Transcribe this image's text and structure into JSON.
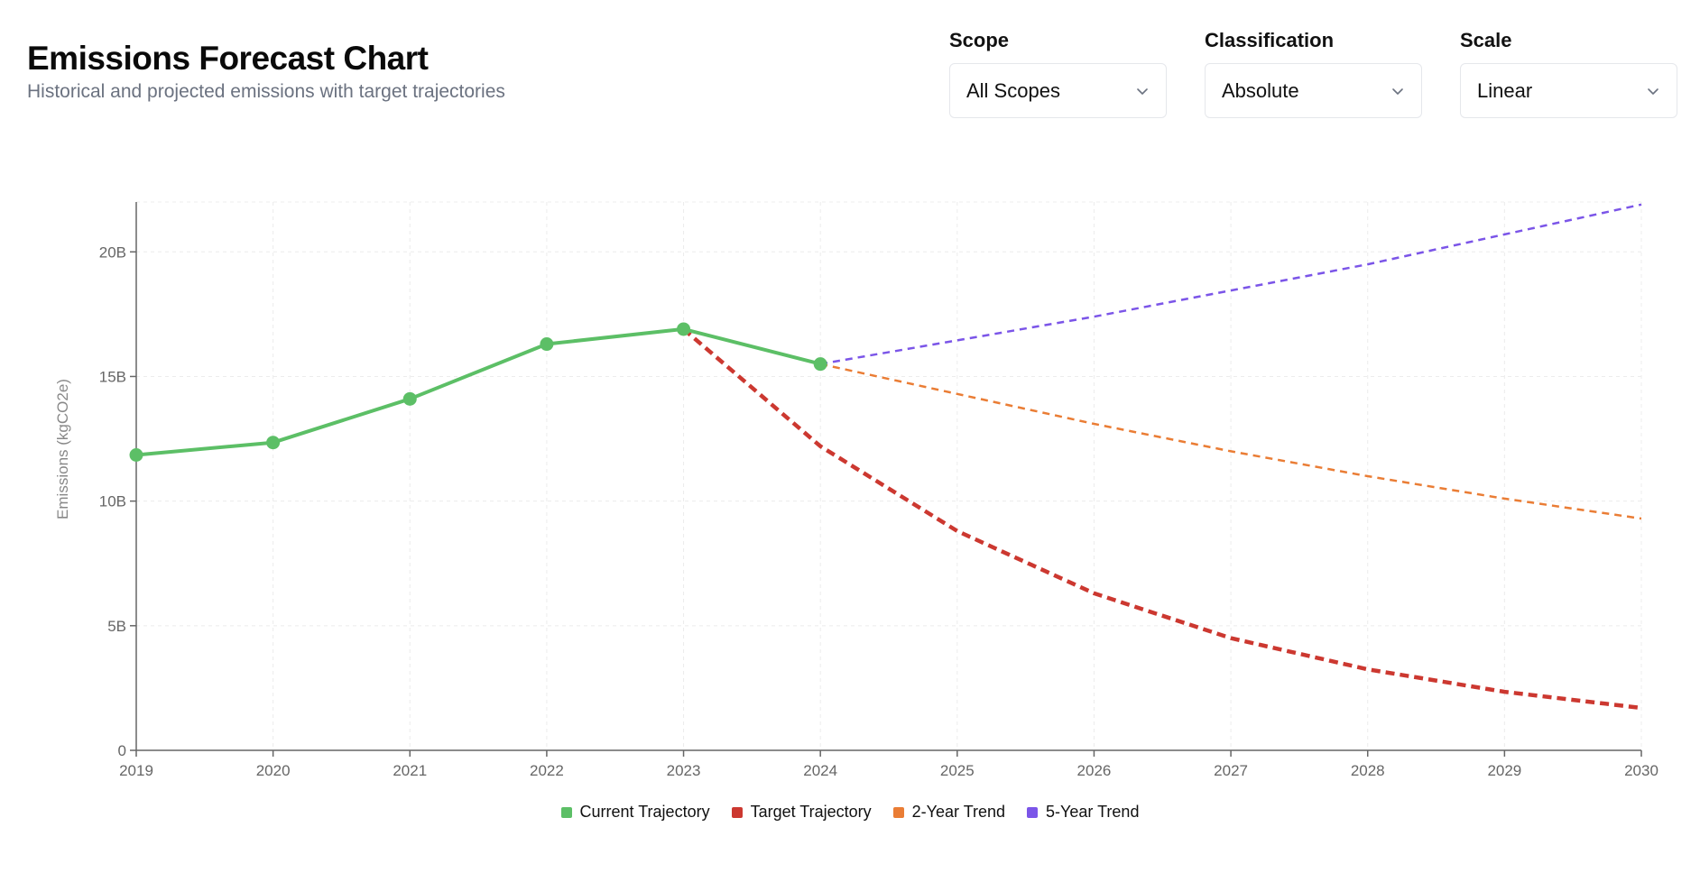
{
  "header": {
    "title": "Emissions Forecast Chart",
    "subtitle": "Historical and projected emissions with target trajectories"
  },
  "controls": [
    {
      "label": "Scope",
      "value": "All Scopes"
    },
    {
      "label": "Classification",
      "value": "Absolute"
    },
    {
      "label": "Scale",
      "value": "Linear"
    }
  ],
  "chart_data": {
    "type": "line",
    "ylabel": "Emissions (kgCO2e)",
    "ylim": [
      0,
      22
    ],
    "xlim": [
      2019,
      2030
    ],
    "y_ticks": [
      {
        "value": 0,
        "label": "0"
      },
      {
        "value": 5,
        "label": "5B"
      },
      {
        "value": 10,
        "label": "10B"
      },
      {
        "value": 15,
        "label": "15B"
      },
      {
        "value": 20,
        "label": "20B"
      }
    ],
    "x_ticks": [
      "2019",
      "2020",
      "2021",
      "2022",
      "2023",
      "2024",
      "2025",
      "2026",
      "2027",
      "2028",
      "2029",
      "2030"
    ],
    "grid": true,
    "legend_position": "bottom-center",
    "series": [
      {
        "name": "Current Trajectory",
        "color": "#5cbf66",
        "style": "solid",
        "markers": true,
        "x": [
          2019,
          2020,
          2021,
          2022,
          2023,
          2024
        ],
        "y": [
          11.85,
          12.35,
          14.1,
          16.3,
          16.9,
          15.5
        ]
      },
      {
        "name": "Target Trajectory",
        "color": "#cc3830",
        "style": "dashed-bold",
        "markers": false,
        "x": [
          2023,
          2024,
          2025,
          2026,
          2027,
          2028,
          2029,
          2030
        ],
        "y": [
          16.9,
          12.2,
          8.8,
          6.3,
          4.5,
          3.25,
          2.35,
          1.7
        ]
      },
      {
        "name": "2-Year Trend",
        "color": "#ea7d35",
        "style": "dashed",
        "markers": false,
        "x": [
          2024,
          2025,
          2026,
          2027,
          2028,
          2029,
          2030
        ],
        "y": [
          15.5,
          14.3,
          13.1,
          12.0,
          11.0,
          10.1,
          9.3
        ]
      },
      {
        "name": "5-Year Trend",
        "color": "#7b55e8",
        "style": "dashed",
        "markers": false,
        "x": [
          2024,
          2025,
          2026,
          2027,
          2028,
          2029,
          2030
        ],
        "y": [
          15.5,
          16.45,
          17.4,
          18.45,
          19.5,
          20.7,
          21.9
        ]
      }
    ]
  }
}
